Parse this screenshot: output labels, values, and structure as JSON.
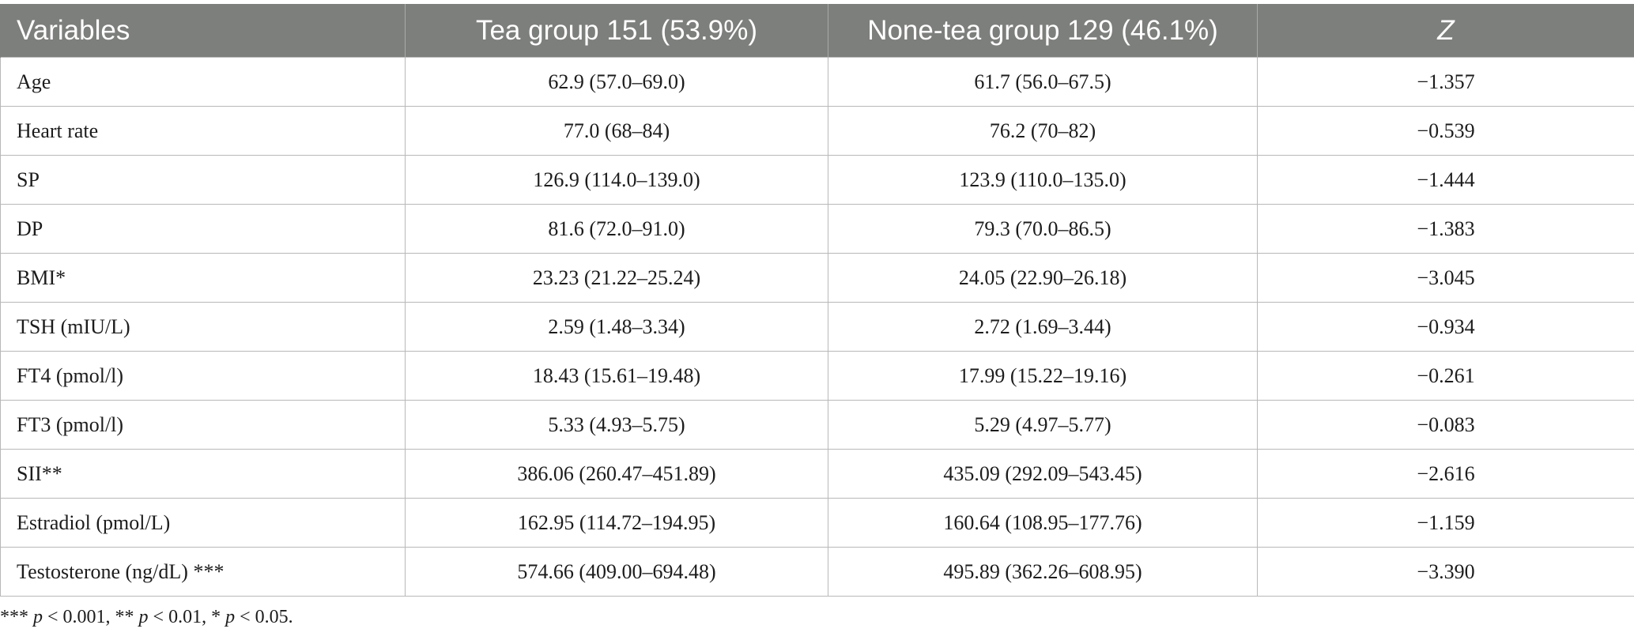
{
  "table": {
    "headers": [
      "Variables",
      "Tea group 151 (53.9%)",
      "None-tea group 129 (46.1%)",
      "Z"
    ],
    "rows": [
      [
        "Age",
        "62.9 (57.0–69.0)",
        "61.7 (56.0–67.5)",
        "−1.357"
      ],
      [
        "Heart rate",
        "77.0 (68–84)",
        "76.2 (70–82)",
        "−0.539"
      ],
      [
        "SP",
        "126.9 (114.0–139.0)",
        "123.9 (110.0–135.0)",
        "−1.444"
      ],
      [
        "DP",
        "81.6 (72.0–91.0)",
        "79.3 (70.0–86.5)",
        "−1.383"
      ],
      [
        "BMI*",
        "23.23 (21.22–25.24)",
        "24.05 (22.90–26.18)",
        "−3.045"
      ],
      [
        "TSH (mIU/L)",
        "2.59 (1.48–3.34)",
        "2.72 (1.69–3.44)",
        "−0.934"
      ],
      [
        "FT4 (pmol/l)",
        "18.43 (15.61–19.48)",
        "17.99 (15.22–19.16)",
        "−0.261"
      ],
      [
        "FT3 (pmol/l)",
        "5.33 (4.93–5.75)",
        "5.29 (4.97–5.77)",
        "−0.083"
      ],
      [
        "SII**",
        "386.06 (260.47–451.89)",
        "435.09 (292.09–543.45)",
        "−2.616"
      ],
      [
        "Estradiol (pmol/L)",
        "162.95 (114.72–194.95)",
        "160.64 (108.95–177.76)",
        "−1.159"
      ],
      [
        "Testosterone (ng/dL) ***",
        "574.66 (409.00–694.48)",
        "495.89 (362.26–608.95)",
        "−3.390"
      ]
    ]
  },
  "footnote": {
    "parts": [
      {
        "text": "*** ",
        "italic": false
      },
      {
        "text": "p",
        "italic": true
      },
      {
        "text": " < 0.001, ** ",
        "italic": false
      },
      {
        "text": "p",
        "italic": true
      },
      {
        "text": " < 0.01, * ",
        "italic": false
      },
      {
        "text": "p",
        "italic": true
      },
      {
        "text": " < 0.05.",
        "italic": false
      }
    ]
  }
}
